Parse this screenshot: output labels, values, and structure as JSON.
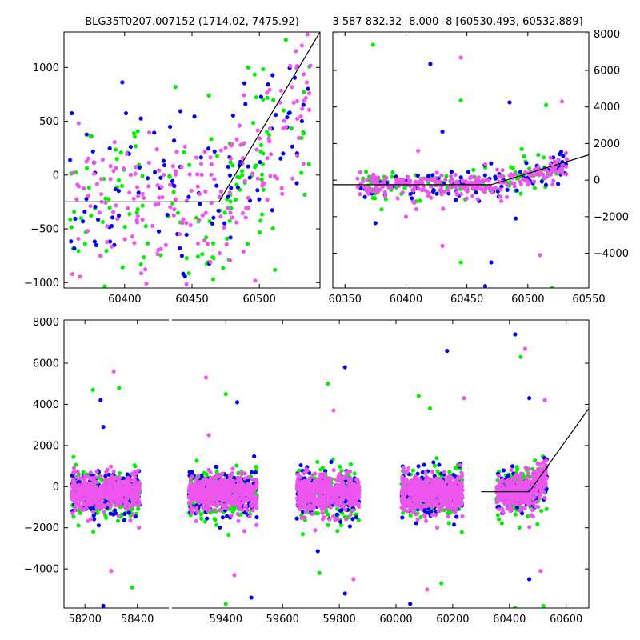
{
  "colors": {
    "blue": "#0000ee",
    "green": "#00ee00",
    "violet": "#ee55ee",
    "model": "#000000"
  },
  "chart_data": [
    {
      "type": "scatter",
      "panel": "top-left",
      "title": "BLG35T0207.007152 (1714.02, 7475.92)",
      "xlim": [
        60355,
        60545
      ],
      "ylim": [
        -1050,
        1330
      ],
      "xticks": [
        60400,
        60450,
        60500
      ],
      "xtick_labels": [
        "60400",
        "60450",
        "60500"
      ],
      "yticks": [
        -1000,
        -500,
        0,
        500,
        1000
      ],
      "ytick_labels": [
        "−1000",
        "−500",
        "0",
        "500",
        "1000"
      ],
      "y_axis_side": "left",
      "model_line": [
        [
          60355,
          -250
        ],
        [
          60470,
          -250
        ],
        [
          60545,
          1330
        ]
      ],
      "point_cloud": {
        "x_range": [
          60358,
          60538
        ],
        "baseline": -250,
        "start": 60470,
        "slope": 16,
        "spread": 520,
        "counts": [
          140,
          110,
          200
        ]
      }
    },
    {
      "type": "scatter",
      "panel": "top-right",
      "title": "3 587 832.32 -8.000 -8 [60530.493, 60532.889]",
      "xlim": [
        60340,
        60550
      ],
      "ylim": [
        -5900,
        8100
      ],
      "xticks": [
        60350,
        60400,
        60450,
        60500,
        60550
      ],
      "xtick_labels": [
        "60350",
        "60400",
        "60450",
        "60500",
        "60550"
      ],
      "yticks": [
        -4000,
        -2000,
        0,
        2000,
        4000,
        6000,
        8000
      ],
      "ytick_labels": [
        "−4000",
        "−2000",
        "0",
        "2000",
        "4000",
        "6000",
        "8000"
      ],
      "y_axis_side": "right",
      "model_line": [
        [
          60340,
          -250
        ],
        [
          60470,
          -250
        ],
        [
          60550,
          1380
        ]
      ],
      "point_cloud": {
        "x_range": [
          60360,
          60532
        ],
        "baseline": -250,
        "start": 60470,
        "slope": 16,
        "spread": 500,
        "counts": [
          110,
          90,
          260
        ]
      },
      "outliers": [
        [
          60373,
          7400
        ],
        [
          60420,
          6350
        ],
        [
          60445,
          6700
        ],
        [
          60445,
          4350
        ],
        [
          60485,
          4250
        ],
        [
          60528,
          4300
        ],
        [
          60515,
          4100
        ],
        [
          60430,
          2650
        ],
        [
          60410,
          1600
        ],
        [
          60495,
          1700
        ],
        [
          60375,
          -2350
        ],
        [
          60430,
          -3600
        ],
        [
          60445,
          -4500
        ],
        [
          60470,
          -4500
        ],
        [
          60510,
          -4100
        ],
        [
          60520,
          -5900
        ],
        [
          60465,
          -5800
        ],
        [
          60400,
          -2000
        ],
        [
          60380,
          -1600
        ],
        [
          60490,
          -2100
        ]
      ]
    },
    {
      "type": "scatter",
      "panel": "bottom",
      "xlim": [
        58120,
        60680
      ],
      "ylim": [
        -5900,
        8100
      ],
      "xticks": [
        58200,
        58400,
        59400,
        59600,
        59800,
        60000,
        60200,
        60400,
        60600
      ],
      "xtick_labels": [
        "58200",
        "58400",
        "59400",
        "59600",
        "59800",
        "60000",
        "60200",
        "60400",
        "60600"
      ],
      "yticks": [
        -4000,
        -2000,
        0,
        2000,
        4000,
        6000,
        8000
      ],
      "ytick_labels": [
        "−4000",
        "−2000",
        "0",
        "2000",
        "4000",
        "6000",
        "8000"
      ],
      "y_axis_side": "left",
      "axis_break_x": 58520,
      "model_line": [
        [
          60300,
          -250
        ],
        [
          60470,
          -250
        ],
        [
          60680,
          3800
        ]
      ],
      "seasons": [
        {
          "x_range": [
            58150,
            58410
          ],
          "counts": [
            260,
            170,
            520
          ]
        },
        {
          "x_range": [
            59270,
            59510
          ],
          "counts": [
            260,
            170,
            520
          ]
        },
        {
          "x_range": [
            59650,
            59870
          ],
          "counts": [
            260,
            170,
            520
          ]
        },
        {
          "x_range": [
            60020,
            60235
          ],
          "counts": [
            260,
            170,
            520
          ]
        },
        {
          "x_range": [
            60355,
            60532
          ],
          "counts": [
            200,
            110,
            360
          ],
          "rise_start": 60470,
          "slope": 16
        }
      ],
      "outliers": [
        [
          58230,
          4700
        ],
        [
          58260,
          4200
        ],
        [
          58310,
          5600
        ],
        [
          58330,
          4800
        ],
        [
          58270,
          2900
        ],
        [
          58300,
          -4100
        ],
        [
          58380,
          -4900
        ],
        [
          58270,
          -5800
        ],
        [
          59330,
          5300
        ],
        [
          59400,
          4500
        ],
        [
          59440,
          4100
        ],
        [
          59340,
          2500
        ],
        [
          59400,
          -5700
        ],
        [
          59490,
          -5400
        ],
        [
          59430,
          -4300
        ],
        [
          59760,
          5000
        ],
        [
          59820,
          5800
        ],
        [
          59780,
          3700
        ],
        [
          59730,
          -4200
        ],
        [
          59820,
          -5200
        ],
        [
          59850,
          -4500
        ],
        [
          60080,
          4400
        ],
        [
          60180,
          6600
        ],
        [
          60240,
          4300
        ],
        [
          60120,
          3800
        ],
        [
          60050,
          -5700
        ],
        [
          60110,
          -5000
        ],
        [
          60160,
          -4700
        ],
        [
          60420,
          7400
        ],
        [
          60455,
          6700
        ],
        [
          60440,
          6300
        ],
        [
          60470,
          4300
        ],
        [
          60525,
          4200
        ],
        [
          60420,
          -5900
        ],
        [
          60470,
          -4500
        ],
        [
          60510,
          -4100
        ],
        [
          60520,
          -5800
        ]
      ]
    }
  ]
}
